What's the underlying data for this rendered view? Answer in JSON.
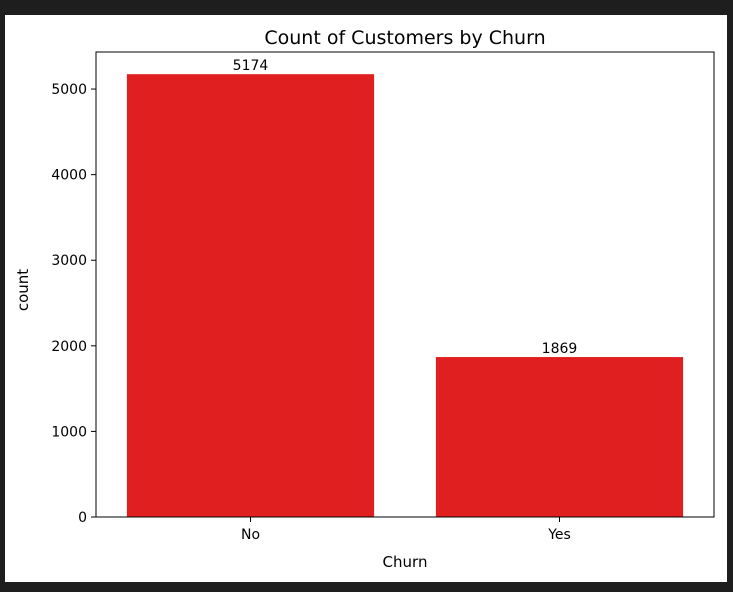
{
  "chart_data": {
    "type": "bar",
    "title": "Count of Customers by Churn",
    "xlabel": "Churn",
    "ylabel": "count",
    "categories": [
      "No",
      "Yes"
    ],
    "values": [
      5174,
      1869
    ],
    "data_labels": [
      "5174",
      "1869"
    ],
    "ylim": [
      0,
      5433
    ],
    "yticks": [
      0,
      1000,
      2000,
      3000,
      4000,
      5000
    ],
    "ytick_labels": [
      "0",
      "1000",
      "2000",
      "3000",
      "4000",
      "5000"
    ],
    "bar_color": "#e02020",
    "grid": false,
    "legend": "none"
  }
}
